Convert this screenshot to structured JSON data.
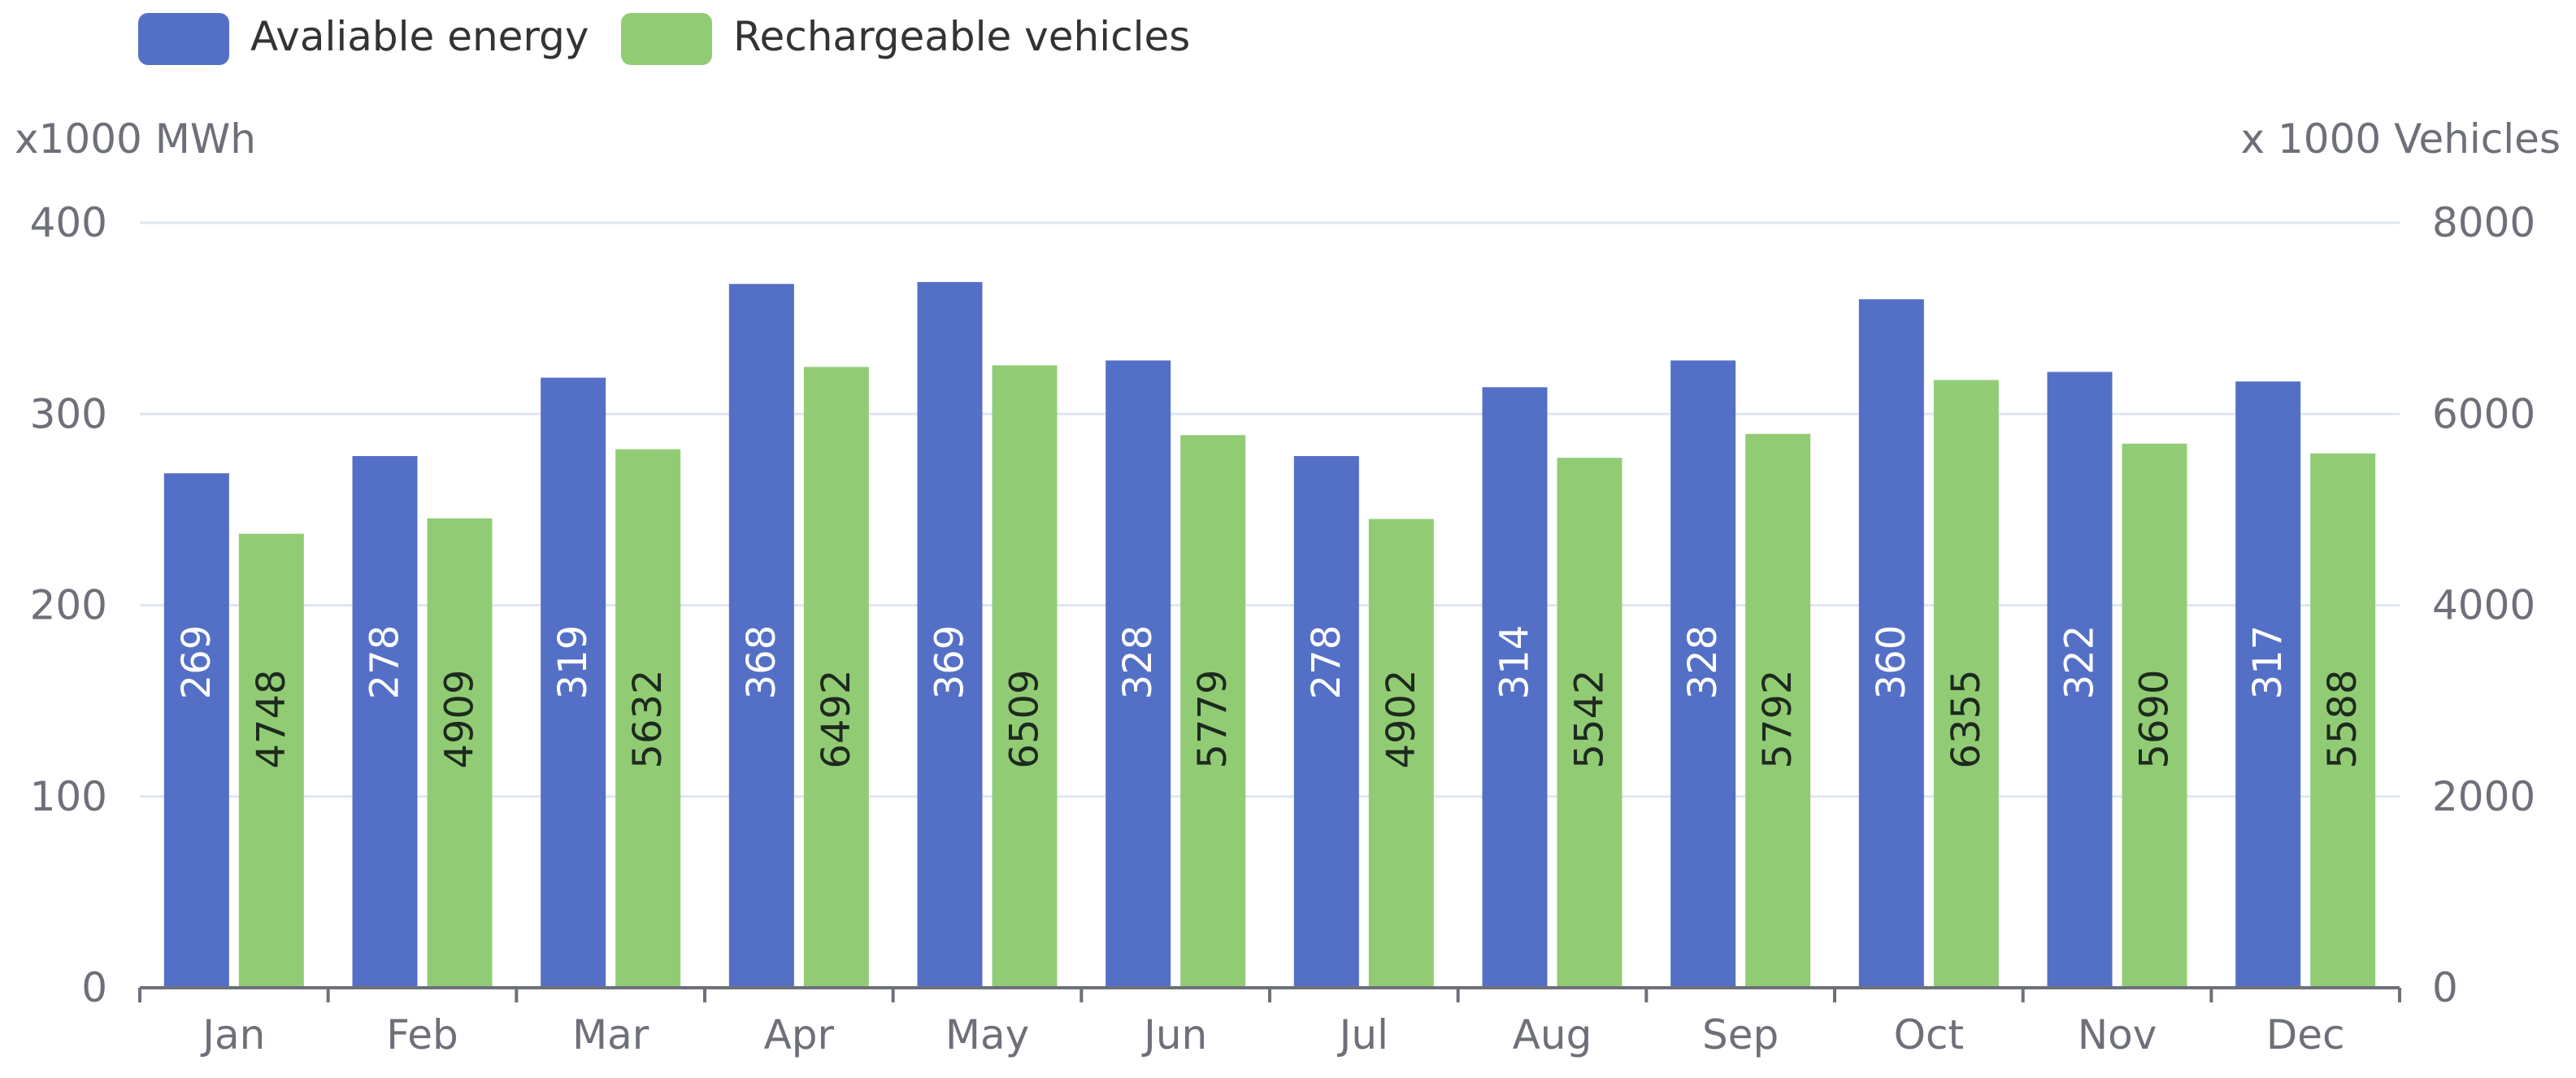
{
  "chart_data": {
    "type": "bar",
    "categories": [
      "Jan",
      "Feb",
      "Mar",
      "Apr",
      "May",
      "Jun",
      "Jul",
      "Aug",
      "Sep",
      "Oct",
      "Nov",
      "Dec"
    ],
    "series": [
      {
        "name": "Avaliable energy",
        "axis": "left",
        "color": "#5470c6",
        "values": [
          269,
          278,
          319,
          368,
          369,
          328,
          278,
          314,
          328,
          360,
          322,
          317
        ]
      },
      {
        "name": "Rechargeable vehicles",
        "axis": "right",
        "color": "#91cc75",
        "values": [
          4748,
          4909,
          5632,
          6492,
          6509,
          5779,
          4902,
          5542,
          5792,
          6355,
          5690,
          5588
        ]
      }
    ],
    "left_axis": {
      "label": "x1000 MWh",
      "ylim": [
        0,
        400
      ],
      "ticks": [
        "0",
        "100",
        "200",
        "300",
        "400"
      ]
    },
    "right_axis": {
      "label": "x 1000 Vehicles",
      "ylim": [
        0,
        8000
      ],
      "ticks": [
        "0",
        "2000",
        "4000",
        "6000",
        "8000"
      ]
    },
    "legend_position": "top-left",
    "grid": true
  }
}
